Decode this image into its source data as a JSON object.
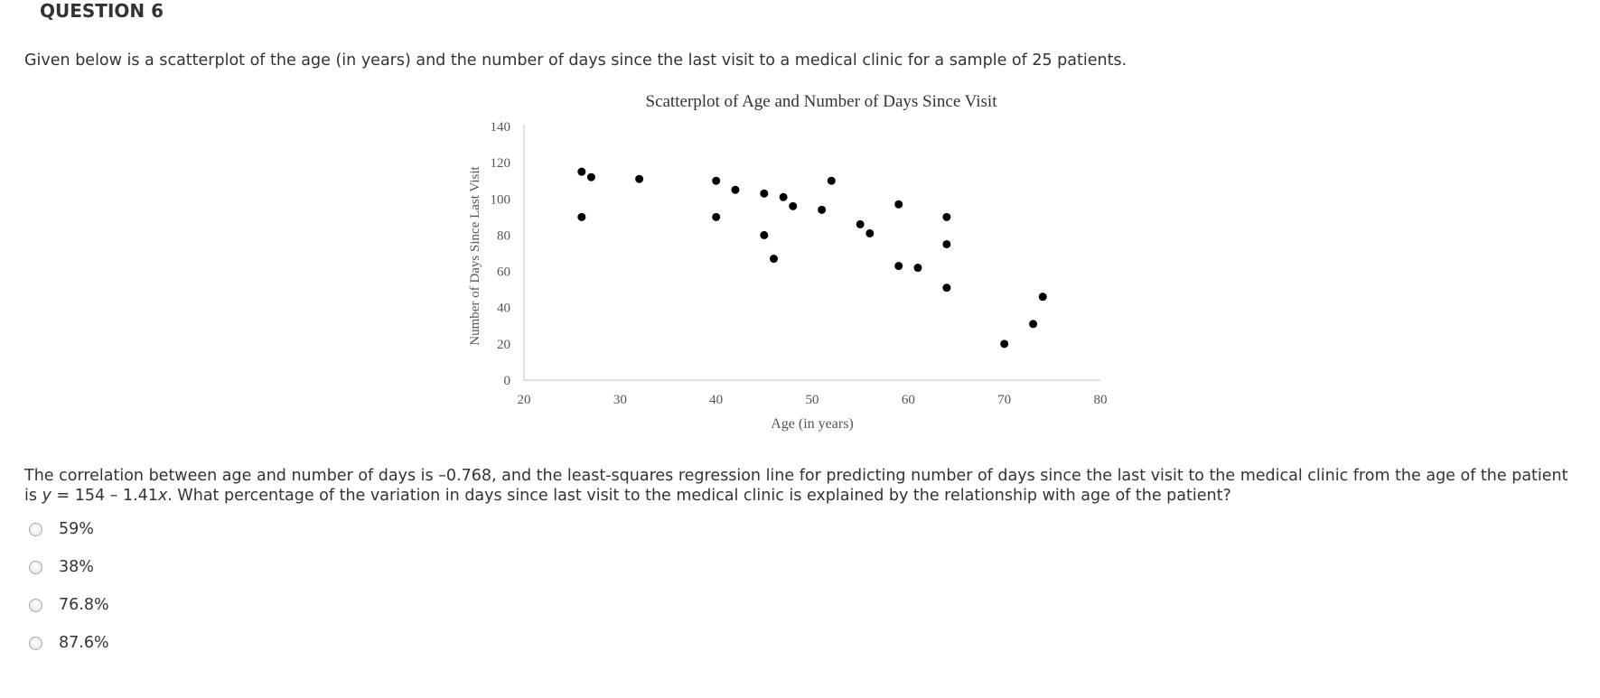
{
  "question": {
    "header": "QUESTION 6",
    "intro": "Given below is a scatterplot of the age (in years) and the number of days since the last visit to a medical clinic for a sample of 25 patients.",
    "body_part1": "The correlation between age and number of days is –0.768, and the least-squares regression line for predicting number of days since the last visit to the medical clinic from the age of the patient is ",
    "body_y": "y",
    "body_mid": " = 154 – 1.41",
    "body_x": "x",
    "body_part2": ".  What percentage of the variation in days since last visit to the medical clinic is explained by the relationship with age of the patient?",
    "options": [
      {
        "label": "59%",
        "selected": false
      },
      {
        "label": "38%",
        "selected": false
      },
      {
        "label": "76.8%",
        "selected": false
      },
      {
        "label": "87.6%",
        "selected": false
      }
    ]
  },
  "chart_data": {
    "type": "scatter",
    "title": "Scatterplot of Age and Number of Days Since Visit",
    "xlabel": "Age (in years)",
    "ylabel": "Number of Days Since Last Visit",
    "xlim": [
      20,
      80
    ],
    "ylim": [
      0,
      140
    ],
    "x_ticks": [
      "20",
      "30",
      "40",
      "50",
      "60",
      "70",
      "80"
    ],
    "y_ticks": [
      "0",
      "20",
      "40",
      "60",
      "80",
      "100",
      "120",
      "140"
    ],
    "grid": false,
    "point_color": "#000000",
    "points": [
      {
        "x": 26,
        "y": 115
      },
      {
        "x": 27,
        "y": 112
      },
      {
        "x": 26,
        "y": 90
      },
      {
        "x": 32,
        "y": 111
      },
      {
        "x": 40,
        "y": 110
      },
      {
        "x": 40,
        "y": 90
      },
      {
        "x": 42,
        "y": 105
      },
      {
        "x": 45,
        "y": 103
      },
      {
        "x": 45,
        "y": 80
      },
      {
        "x": 46,
        "y": 67
      },
      {
        "x": 47,
        "y": 101
      },
      {
        "x": 48,
        "y": 96
      },
      {
        "x": 51,
        "y": 94
      },
      {
        "x": 52,
        "y": 110
      },
      {
        "x": 55,
        "y": 86
      },
      {
        "x": 56,
        "y": 81
      },
      {
        "x": 59,
        "y": 97
      },
      {
        "x": 59,
        "y": 63
      },
      {
        "x": 61,
        "y": 62
      },
      {
        "x": 64,
        "y": 90
      },
      {
        "x": 64,
        "y": 75
      },
      {
        "x": 64,
        "y": 51
      },
      {
        "x": 70,
        "y": 20
      },
      {
        "x": 73,
        "y": 31
      },
      {
        "x": 74,
        "y": 46
      }
    ]
  }
}
